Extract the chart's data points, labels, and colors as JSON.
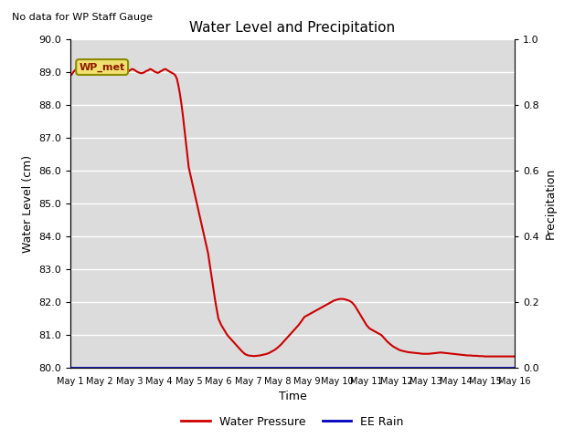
{
  "title": "Water Level and Precipitation",
  "subtitle": "No data for WP Staff Gauge",
  "ylabel_left": "Water Level (cm)",
  "ylabel_right": "Precipitation",
  "xlabel": "Time",
  "ylim_left": [
    80.0,
    90.0
  ],
  "ylim_right": [
    0.0,
    1.0
  ],
  "bg_color": "#dcdcdc",
  "legend_label_wp": "Water Pressure",
  "legend_label_rain": "EE Rain",
  "legend_text_wp": "WP_met",
  "wp_color": "#cc0000",
  "rain_color": "#0000bb",
  "x_tick_labels": [
    "May 1",
    "May 2",
    "May 3",
    "May 4",
    "May 5",
    "May 6",
    "May 7",
    "May 8",
    "May 9",
    "May 10",
    "May 11",
    "May 12",
    "May 13",
    "May 14",
    "May 15",
    "May 16"
  ],
  "water_level_x": [
    0.0,
    0.05,
    0.1,
    0.15,
    0.2,
    0.25,
    0.3,
    0.35,
    0.4,
    0.45,
    0.5,
    0.55,
    0.6,
    0.65,
    0.7,
    0.75,
    0.8,
    0.85,
    0.9,
    0.95,
    1.0,
    1.05,
    1.1,
    1.15,
    1.2,
    1.25,
    1.3,
    1.35,
    1.4,
    1.45,
    1.5,
    1.55,
    1.6,
    1.65,
    1.7,
    1.75,
    1.8,
    1.85,
    1.9,
    1.95,
    2.0,
    2.05,
    2.1,
    2.15,
    2.2,
    2.25,
    2.3,
    2.35,
    2.4,
    2.45,
    2.5,
    2.55,
    2.6,
    2.65,
    2.7,
    2.75,
    2.8,
    2.85,
    2.9,
    2.95,
    3.0,
    3.05,
    3.1,
    3.15,
    3.2,
    3.25,
    3.3,
    3.35,
    3.4,
    3.45,
    3.5,
    3.55,
    3.6,
    3.65,
    3.7,
    3.75,
    3.8,
    3.85,
    3.9,
    3.95,
    4.0,
    4.05,
    4.1,
    4.15,
    4.2,
    4.25,
    4.3,
    4.35,
    4.4,
    4.45,
    4.5,
    4.55,
    4.6,
    4.65,
    4.7,
    4.75,
    4.8,
    4.85,
    4.9,
    4.95,
    5.0,
    5.1,
    5.2,
    5.3,
    5.4,
    5.5,
    5.6,
    5.7,
    5.8,
    5.9,
    6.0,
    6.1,
    6.2,
    6.3,
    6.4,
    6.5,
    6.6,
    6.7,
    6.8,
    6.9,
    7.0,
    7.1,
    7.2,
    7.3,
    7.4,
    7.5,
    7.6,
    7.7,
    7.8,
    7.9,
    8.0,
    8.1,
    8.2,
    8.3,
    8.4,
    8.5,
    8.6,
    8.7,
    8.8,
    8.9,
    9.0,
    9.1,
    9.2,
    9.3,
    9.4,
    9.5,
    9.6,
    9.7,
    9.8,
    9.9,
    10.0,
    10.1,
    10.2,
    10.3,
    10.4,
    10.5,
    10.6,
    10.7,
    10.8,
    10.9,
    11.0,
    11.1,
    11.2,
    11.3,
    11.4,
    11.5,
    11.6,
    11.7,
    11.8,
    11.9,
    12.0,
    12.1,
    12.2,
    12.3,
    12.4,
    12.5,
    12.6,
    12.7,
    12.8,
    12.9,
    13.0,
    13.1,
    13.2,
    13.3,
    13.4,
    13.5,
    13.6,
    13.7,
    13.8,
    13.9,
    14.0,
    14.1,
    14.2,
    14.3,
    14.4,
    14.5,
    14.6,
    14.7,
    14.8,
    14.9,
    15.0
  ],
  "water_level_y": [
    88.9,
    88.93,
    89.0,
    89.05,
    89.1,
    89.13,
    89.08,
    89.02,
    89.05,
    89.1,
    89.12,
    89.08,
    89.03,
    89.0,
    89.02,
    89.05,
    89.0,
    88.97,
    89.0,
    89.05,
    89.05,
    89.0,
    88.96,
    88.98,
    89.0,
    89.03,
    89.05,
    89.02,
    89.0,
    88.97,
    89.0,
    89.03,
    89.05,
    89.07,
    89.05,
    89.02,
    89.0,
    88.98,
    89.0,
    89.02,
    89.05,
    89.08,
    89.1,
    89.08,
    89.05,
    89.02,
    89.0,
    88.98,
    88.97,
    88.98,
    89.0,
    89.03,
    89.05,
    89.07,
    89.1,
    89.08,
    89.05,
    89.02,
    89.0,
    88.98,
    89.0,
    89.03,
    89.05,
    89.08,
    89.1,
    89.08,
    89.05,
    89.02,
    89.0,
    88.97,
    88.95,
    88.9,
    88.8,
    88.6,
    88.35,
    88.05,
    87.7,
    87.3,
    86.9,
    86.5,
    86.1,
    85.9,
    85.7,
    85.5,
    85.3,
    85.1,
    84.9,
    84.7,
    84.5,
    84.3,
    84.1,
    83.9,
    83.7,
    83.5,
    83.2,
    82.9,
    82.6,
    82.3,
    82.0,
    81.75,
    81.5,
    81.3,
    81.15,
    81.0,
    80.9,
    80.8,
    80.7,
    80.6,
    80.5,
    80.42,
    80.38,
    80.37,
    80.36,
    80.37,
    80.38,
    80.4,
    80.42,
    80.45,
    80.5,
    80.55,
    80.62,
    80.7,
    80.8,
    80.9,
    81.0,
    81.1,
    81.2,
    81.3,
    81.42,
    81.55,
    81.6,
    81.65,
    81.7,
    81.75,
    81.8,
    81.85,
    81.9,
    81.95,
    82.0,
    82.05,
    82.08,
    82.1,
    82.1,
    82.08,
    82.05,
    82.0,
    81.9,
    81.75,
    81.6,
    81.45,
    81.3,
    81.2,
    81.15,
    81.1,
    81.05,
    81.0,
    80.9,
    80.8,
    80.72,
    80.65,
    80.6,
    80.55,
    80.52,
    80.5,
    80.48,
    80.47,
    80.46,
    80.45,
    80.44,
    80.43,
    80.43,
    80.43,
    80.44,
    80.45,
    80.46,
    80.47,
    80.46,
    80.45,
    80.44,
    80.43,
    80.42,
    80.41,
    80.4,
    80.39,
    80.38,
    80.38,
    80.37,
    80.37,
    80.36,
    80.36,
    80.35,
    80.35,
    80.35,
    80.35,
    80.35,
    80.35,
    80.35,
    80.35,
    80.35,
    80.35,
    80.35
  ]
}
